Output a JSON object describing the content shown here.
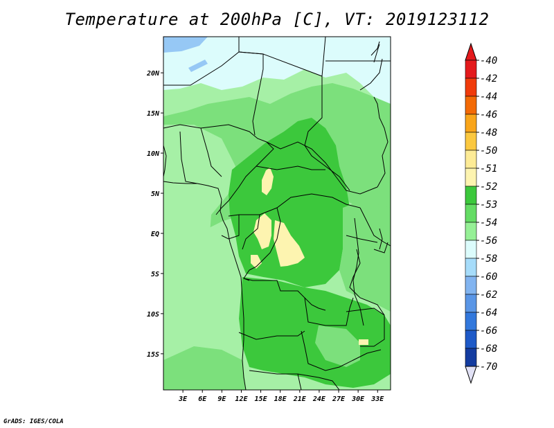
{
  "title": "Temperature at 200hPa [C], VT: 2019123112",
  "credit": "GrADS: IGES/COLA",
  "map": {
    "lon_labels": [
      "3E",
      "6E",
      "9E",
      "12E",
      "15E",
      "18E",
      "21E",
      "24E",
      "27E",
      "30E",
      "33E"
    ],
    "lat_labels": [
      "20N",
      "15N",
      "10N",
      "5N",
      "EQ",
      "5S",
      "10S",
      "15S"
    ],
    "lon_range": [
      0,
      35
    ],
    "lat_range": [
      -19.5,
      24.5
    ]
  },
  "colorbar": {
    "labels": [
      "-40",
      "-42",
      "-44",
      "-46",
      "-48",
      "-50",
      "-51",
      "-52",
      "-53",
      "-54",
      "-56",
      "-58",
      "-60",
      "-62",
      "-64",
      "-66",
      "-68",
      "-70"
    ],
    "colors": [
      "#e41a1c",
      "#f03b0b",
      "#f36a06",
      "#f9a51a",
      "#fbc840",
      "#fdeb96",
      "#fdf4b0",
      "#3cc83c",
      "#64dc64",
      "#96f096",
      "#dcfcfc",
      "#a6dcfa",
      "#82b4f0",
      "#5a96e6",
      "#3278dc",
      "#1e5ac8",
      "#143ca0",
      "#0a1478"
    ],
    "top_arrow_color": "#e41a1c",
    "bottom_arrow_color": "#e1e1f5"
  },
  "field_colors": {
    "light_cyan": "#dcfcfc",
    "light_blue": "#96c8f5",
    "pale_green": "#a6f0a6",
    "green": "#7ce07c",
    "dark_green": "#3cc83c",
    "yellow": "#fdf4b0"
  }
}
